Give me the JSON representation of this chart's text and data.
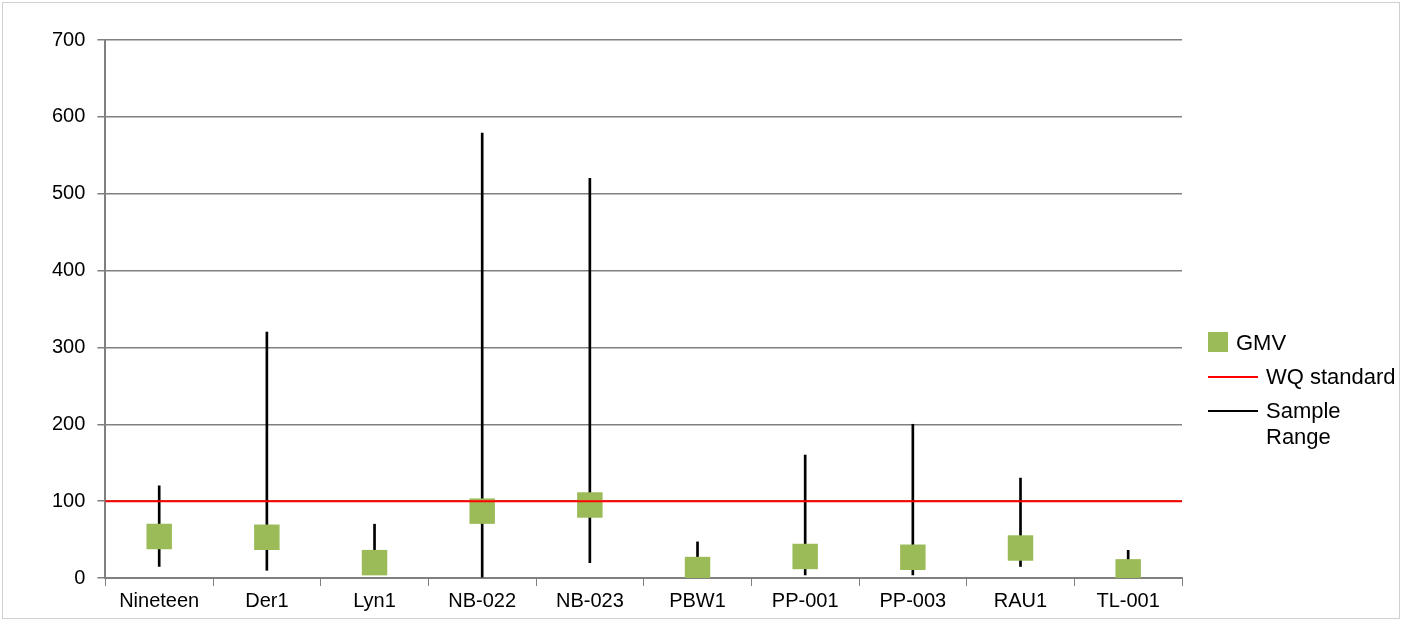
{
  "chart_data": {
    "type": "scatter",
    "categories": [
      "Nineteen",
      "Der1",
      "Lyn1",
      "NB-022",
      "NB-023",
      "PBW1",
      "PP-001",
      "PP-003",
      "RAU1",
      "TL-001"
    ],
    "series": [
      {
        "name": "GMV",
        "color": "#9bbb59",
        "values": [
          54,
          53,
          20,
          87,
          95,
          11,
          28,
          27,
          39,
          8
        ]
      },
      {
        "name": "Sample Range",
        "type": "bar",
        "color": "#000000",
        "base": [
          15,
          10,
          5,
          0,
          20,
          5,
          4,
          4,
          15,
          3
        ],
        "values": [
          105,
          310,
          65,
          579,
          500,
          42,
          156,
          196,
          115,
          33
        ]
      }
    ],
    "ref_lines": [
      {
        "axis": "y",
        "value": 100,
        "label": "WQ standard",
        "color": "#ff0000"
      }
    ],
    "ylim": [
      0,
      700
    ],
    "yticks": [
      0,
      100,
      200,
      300,
      400,
      500,
      600,
      700
    ],
    "grid": "y",
    "legend": "right",
    "marker": "square"
  }
}
